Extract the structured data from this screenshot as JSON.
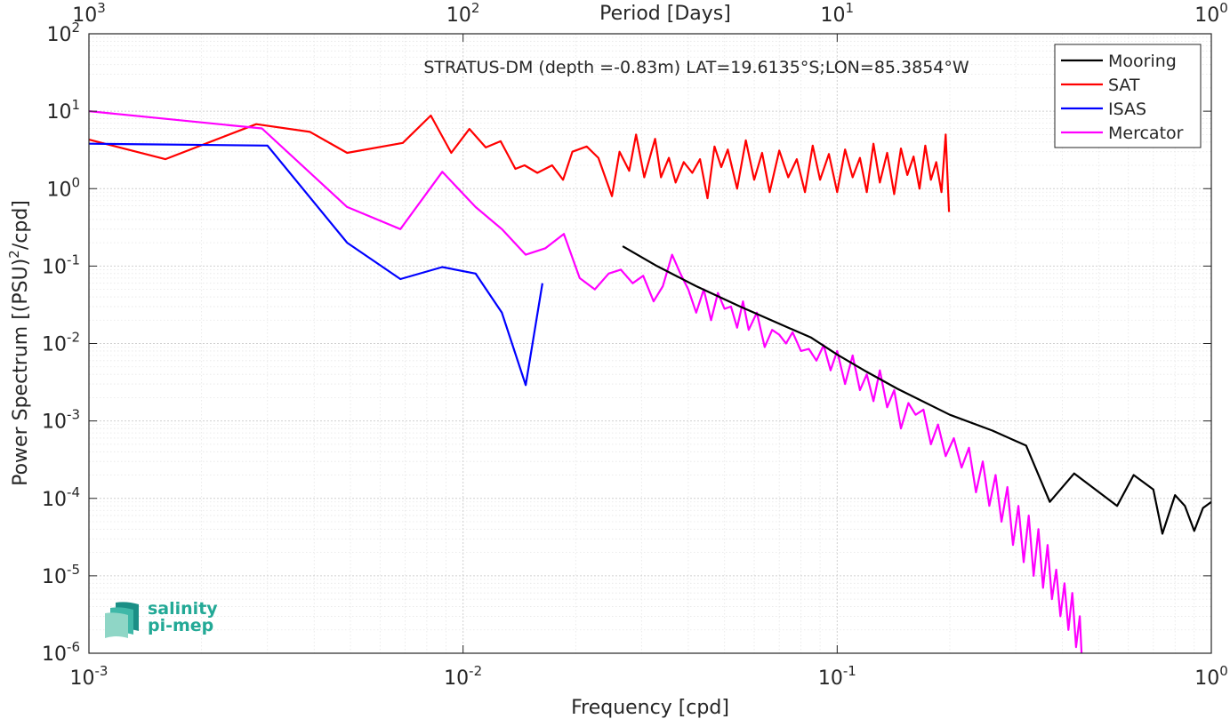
{
  "chart_data": {
    "type": "line",
    "title": "STRATUS-DM (depth =-0.83m) LAT=19.6135°S;LON=85.3854°W",
    "xlabel": "Frequency [cpd]",
    "ylabel": "Power Spectrum [(PSU)²/cpd]",
    "top_axis_label": "Period [Days]",
    "x_scale": "log",
    "y_scale": "log",
    "xlim": [
      0.001,
      1
    ],
    "ylim": [
      1e-06,
      100
    ],
    "grid": true,
    "legend_position": "top-right",
    "x_ticks": [
      {
        "base": "10",
        "exp": "-3"
      },
      {
        "base": "10",
        "exp": "-2"
      },
      {
        "base": "10",
        "exp": "-1"
      },
      {
        "base": "10",
        "exp": "0"
      }
    ],
    "top_ticks": [
      {
        "base": "10",
        "exp": "3"
      },
      {
        "base": "10",
        "exp": "2"
      },
      {
        "base": "10",
        "exp": "1"
      },
      {
        "base": "10",
        "exp": "0"
      }
    ],
    "y_ticks": [
      {
        "base": "10",
        "exp": "-6"
      },
      {
        "base": "10",
        "exp": "-5"
      },
      {
        "base": "10",
        "exp": "-4"
      },
      {
        "base": "10",
        "exp": "-3"
      },
      {
        "base": "10",
        "exp": "-2"
      },
      {
        "base": "10",
        "exp": "-1"
      },
      {
        "base": "10",
        "exp": "0"
      },
      {
        "base": "10",
        "exp": "1"
      },
      {
        "base": "10",
        "exp": "2"
      }
    ],
    "series": [
      {
        "name": "Mooring",
        "color": "#000000",
        "x": [
          0.0267,
          0.033,
          0.042,
          0.055,
          0.07,
          0.085,
          0.1,
          0.12,
          0.145,
          0.2,
          0.26,
          0.32,
          0.37,
          0.43,
          0.56,
          0.62,
          0.7,
          0.74,
          0.8,
          0.85,
          0.9,
          0.95,
          1.0
        ],
        "y": [
          0.18,
          0.1,
          0.055,
          0.03,
          0.018,
          0.012,
          0.0072,
          0.0043,
          0.0026,
          0.0012,
          0.00075,
          0.00048,
          9e-05,
          0.00021,
          8e-05,
          0.0002,
          0.00013,
          3.5e-05,
          0.00011,
          8e-05,
          3.8e-05,
          7.5e-05,
          9e-05
        ]
      },
      {
        "name": "SAT",
        "color": "#ff0000",
        "x": [
          0.001,
          0.0016,
          0.0028,
          0.0039,
          0.0049,
          0.0069,
          0.0082,
          0.0093,
          0.0104,
          0.0115,
          0.0126,
          0.0138,
          0.0146,
          0.0158,
          0.0173,
          0.0185,
          0.0196,
          0.0214,
          0.023,
          0.025,
          0.0262,
          0.0278,
          0.029,
          0.0305,
          0.0326,
          0.0338,
          0.0355,
          0.037,
          0.0389,
          0.041,
          0.043,
          0.045,
          0.047,
          0.049,
          0.051,
          0.054,
          0.057,
          0.06,
          0.063,
          0.066,
          0.07,
          0.074,
          0.078,
          0.082,
          0.086,
          0.09,
          0.095,
          0.1,
          0.105,
          0.11,
          0.115,
          0.12,
          0.125,
          0.13,
          0.136,
          0.142,
          0.148,
          0.154,
          0.16,
          0.166,
          0.172,
          0.178,
          0.184,
          0.19,
          0.195,
          0.199
        ],
        "y": [
          4.3,
          2.4,
          6.8,
          5.4,
          2.9,
          3.9,
          8.8,
          2.9,
          5.9,
          3.4,
          4.1,
          1.8,
          2.0,
          1.6,
          2.0,
          1.3,
          3.0,
          3.5,
          2.5,
          0.8,
          3.0,
          1.7,
          5.0,
          1.4,
          4.4,
          1.4,
          2.5,
          1.2,
          2.2,
          1.6,
          2.4,
          0.75,
          3.5,
          1.9,
          3.2,
          1.0,
          4.2,
          1.3,
          2.9,
          0.9,
          3.1,
          1.4,
          2.4,
          0.9,
          3.6,
          1.3,
          2.8,
          0.9,
          3.2,
          1.4,
          2.5,
          0.9,
          3.8,
          1.2,
          2.9,
          0.85,
          3.3,
          1.5,
          2.6,
          1.0,
          3.6,
          1.3,
          2.2,
          0.9,
          5.0,
          0.5
        ]
      },
      {
        "name": "ISAS",
        "color": "#0000ff",
        "x": [
          0.001,
          0.003,
          0.0049,
          0.0068,
          0.0088,
          0.0108,
          0.0127,
          0.0147,
          0.0163
        ],
        "y": [
          3.8,
          3.6,
          0.2,
          0.068,
          0.097,
          0.08,
          0.025,
          0.0029,
          0.06
        ]
      },
      {
        "name": "Mercator",
        "color": "#ff00ff",
        "x": [
          0.001,
          0.0029,
          0.0049,
          0.0068,
          0.0088,
          0.0108,
          0.0127,
          0.0147,
          0.0166,
          0.0186,
          0.0205,
          0.0225,
          0.0245,
          0.0264,
          0.0284,
          0.0303,
          0.0323,
          0.0342,
          0.0362,
          0.0381,
          0.04,
          0.042,
          0.044,
          0.046,
          0.048,
          0.05,
          0.052,
          0.054,
          0.056,
          0.058,
          0.061,
          0.064,
          0.067,
          0.07,
          0.073,
          0.076,
          0.08,
          0.084,
          0.088,
          0.092,
          0.096,
          0.1,
          0.105,
          0.11,
          0.115,
          0.12,
          0.125,
          0.13,
          0.136,
          0.142,
          0.148,
          0.155,
          0.162,
          0.17,
          0.178,
          0.186,
          0.195,
          0.205,
          0.215,
          0.225,
          0.235,
          0.245,
          0.255,
          0.265,
          0.275,
          0.285,
          0.295,
          0.305,
          0.315,
          0.325,
          0.335,
          0.345,
          0.355,
          0.365,
          0.375,
          0.385,
          0.395,
          0.405,
          0.415,
          0.425,
          0.435,
          0.445,
          0.45
        ],
        "y": [
          10,
          6.0,
          0.58,
          0.3,
          1.65,
          0.58,
          0.3,
          0.14,
          0.17,
          0.26,
          0.07,
          0.05,
          0.08,
          0.09,
          0.06,
          0.075,
          0.035,
          0.055,
          0.14,
          0.08,
          0.05,
          0.025,
          0.05,
          0.02,
          0.045,
          0.028,
          0.03,
          0.016,
          0.035,
          0.015,
          0.025,
          0.009,
          0.015,
          0.013,
          0.01,
          0.014,
          0.008,
          0.0085,
          0.006,
          0.0095,
          0.0045,
          0.008,
          0.003,
          0.007,
          0.0025,
          0.004,
          0.0018,
          0.0045,
          0.0015,
          0.0025,
          0.0008,
          0.0017,
          0.0012,
          0.0014,
          0.0005,
          0.0009,
          0.00035,
          0.0006,
          0.00025,
          0.00045,
          0.00012,
          0.0003,
          8e-05,
          0.0002,
          5e-05,
          0.00014,
          2.5e-05,
          8e-05,
          1.5e-05,
          6e-05,
          1e-05,
          4e-05,
          7e-06,
          2.5e-05,
          5e-06,
          1.2e-05,
          3e-06,
          8e-06,
          2e-06,
          6e-06,
          1.2e-06,
          3e-06,
          1e-06
        ]
      }
    ]
  },
  "logo": {
    "line1": "salinity",
    "line2": "pi-mep",
    "colors": [
      "#1b8f86",
      "#3fb8a8",
      "#8fd6c6"
    ]
  }
}
